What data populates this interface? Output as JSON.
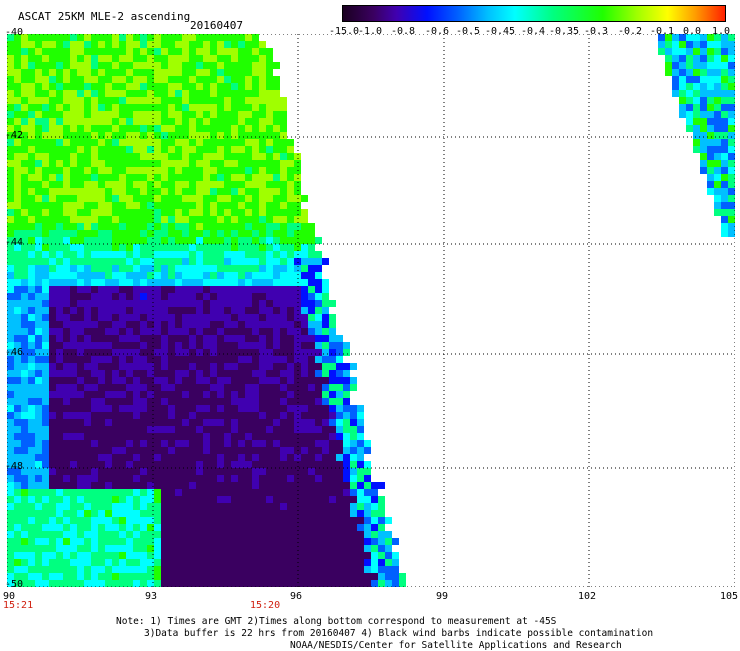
{
  "header": {
    "title": "ASCAT 25KM MLE-2 ascending",
    "date": "20160407"
  },
  "colorbar": {
    "labels": [
      "-15.0",
      "-1.0",
      "-0.8",
      "-0.6",
      "-0.5",
      "-0.45",
      "-0.4",
      "-0.35",
      "-0.3",
      "-0.2",
      "-0.1",
      "0.0",
      "1.0"
    ],
    "colors": [
      "#1a0020",
      "#3a0060",
      "#4000b0",
      "#0010ff",
      "#0060ff",
      "#00c0ff",
      "#00ffff",
      "#00ff80",
      "#20ff00",
      "#a0ff00",
      "#ffff00",
      "#ffa000",
      "#ff2000"
    ]
  },
  "map": {
    "lat_labels": [
      "-40",
      "-42",
      "-44",
      "-46",
      "-48",
      "-50"
    ],
    "lon_labels": [
      "90",
      "93",
      "96",
      "99",
      "102",
      "105"
    ],
    "lat_range": [
      -50,
      -40
    ],
    "lon_range": [
      90,
      105
    ],
    "time_labels": [
      "15:21",
      "15:20"
    ]
  },
  "notes": {
    "line1": "Note: 1) Times are GMT 2)Times along bottom correspond to measurement at -45S",
    "line2": "3)Data buffer is 22 hrs from 20160407 4) Black wind barbs indicate possible contamination",
    "line3": "NOAA/NESDIS/Center for Satellite Applications and Research"
  }
}
